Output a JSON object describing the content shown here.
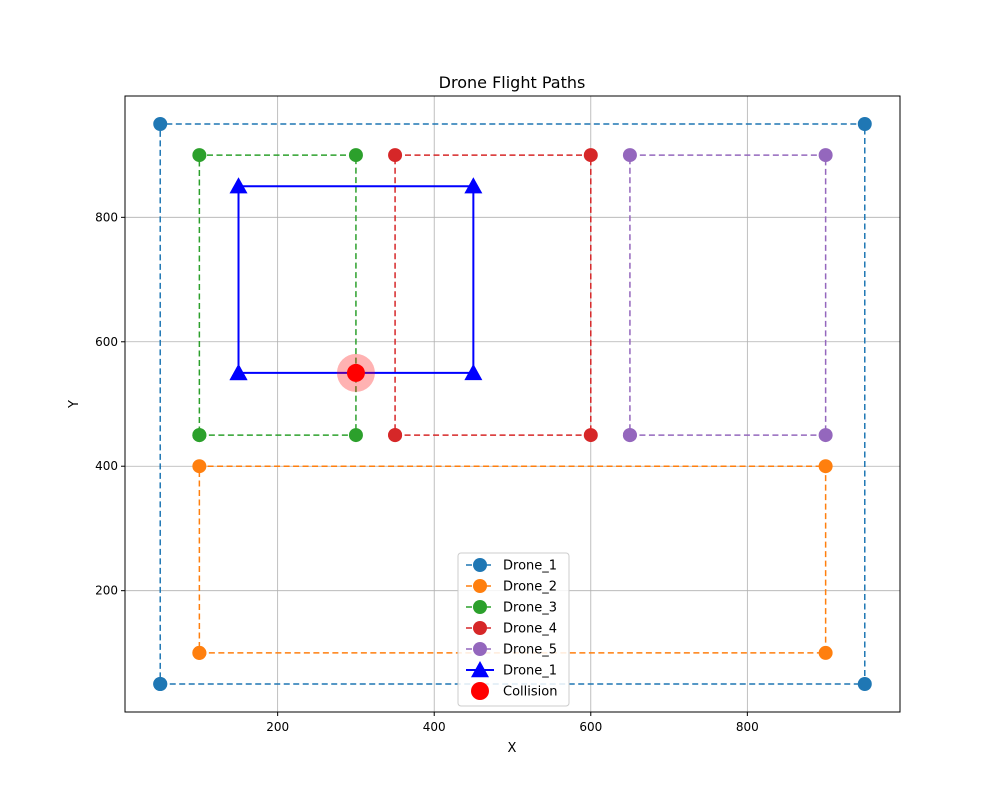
{
  "chart_data": {
    "type": "line",
    "title": "Drone Flight Paths",
    "xlabel": "X",
    "ylabel": "Y",
    "xlim": [
      5,
      995
    ],
    "ylim": [
      5,
      995
    ],
    "xticks": [
      200,
      400,
      600,
      800
    ],
    "yticks": [
      200,
      400,
      600,
      800
    ],
    "grid": true,
    "legend_position": "lower-center",
    "series": [
      {
        "name": "Drone_1",
        "color": "#1f77b4",
        "style": "dashed",
        "marker": "circle",
        "x": [
          50,
          950,
          950,
          50,
          50
        ],
        "y": [
          50,
          50,
          950,
          950,
          50
        ]
      },
      {
        "name": "Drone_2",
        "color": "#ff7f0e",
        "style": "dashed",
        "marker": "circle",
        "x": [
          100,
          900,
          900,
          100,
          100
        ],
        "y": [
          100,
          100,
          400,
          400,
          100
        ]
      },
      {
        "name": "Drone_3",
        "color": "#2ca02c",
        "style": "dashed",
        "marker": "circle",
        "x": [
          100,
          300,
          300,
          100,
          100
        ],
        "y": [
          450,
          450,
          900,
          900,
          450
        ]
      },
      {
        "name": "Drone_4",
        "color": "#d62728",
        "style": "dashed",
        "marker": "circle",
        "x": [
          350,
          600,
          600,
          350,
          350
        ],
        "y": [
          450,
          450,
          900,
          900,
          450
        ]
      },
      {
        "name": "Drone_5",
        "color": "#9467bd",
        "style": "dashed",
        "marker": "circle",
        "x": [
          650,
          900,
          900,
          650,
          650
        ],
        "y": [
          450,
          450,
          900,
          900,
          450
        ]
      },
      {
        "name": "Drone_1",
        "color": "#0000ff",
        "style": "solid",
        "marker": "triangle",
        "x": [
          150,
          450,
          450,
          150,
          150
        ],
        "y": [
          550,
          550,
          850,
          850,
          550
        ]
      }
    ],
    "collisions": {
      "name": "Collision",
      "color": "#ff0000",
      "points": [
        {
          "x": 300,
          "y": 550
        }
      ]
    }
  }
}
